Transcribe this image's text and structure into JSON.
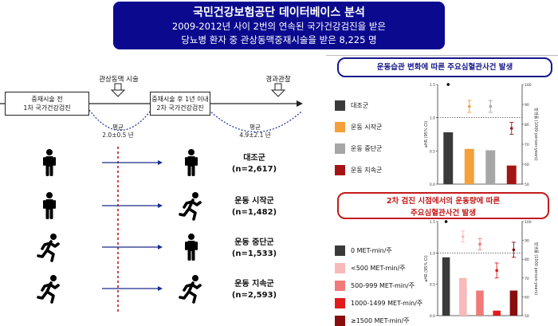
{
  "header": {
    "title": "국민건강보험공단 데이터베이스 분석",
    "line1": "2009-2012년 사이 2번의 연속된 국가건강검진을 받은",
    "line2": "당뇨병 환자 중 관상동맥중재시술을 받은 8,225 명"
  },
  "timeline": {
    "box1": [
      "중재시술 전",
      "1차 국가건강검진"
    ],
    "box2": [
      "중재시술 후 1년 이내",
      "2차 국가건강검진"
    ],
    "step1": "관상동맥 시술",
    "step2": "경과관찰",
    "avg_label": "평균",
    "avg1": "2.0±0.5 년",
    "avg2": "4.9±2.1 년"
  },
  "groups": [
    {
      "name": "대조군",
      "n": "(n=2,617)",
      "first": "stand",
      "second": "stand"
    },
    {
      "name": "운동 시작군",
      "n": "(n=1,482)",
      "first": "stand",
      "second": "run"
    },
    {
      "name": "운동 중단군",
      "n": "(n=1,533)",
      "first": "run",
      "second": "stand"
    },
    {
      "name": "운동 지속군",
      "n": "(n=2,593)",
      "first": "run",
      "second": "run"
    }
  ],
  "panel1": {
    "title": "운동습관 변화에 따른 주요심혈관사건 발생",
    "legend": [
      {
        "label": "대조군",
        "color": "#3a3a3a"
      },
      {
        "label": "운동 시작군",
        "color": "#f5a03a"
      },
      {
        "label": "운동 중단군",
        "color": "#a6a6a6"
      },
      {
        "label": "운동 지속군",
        "color": "#a31515"
      }
    ],
    "chart_data": {
      "type": "bar",
      "categories": [
        "대조군",
        "운동 시작군",
        "운동 중단군",
        "운동 지속군"
      ],
      "values": [
        0.78,
        0.53,
        0.51,
        0.28
      ],
      "points": [
        100,
        89,
        89,
        78
      ],
      "point_errors": [
        0,
        3,
        3,
        3
      ],
      "ylim": [
        0,
        1.5
      ],
      "yticks_left": [
        "0.0",
        "0.5",
        "1.0",
        "1.5"
      ],
      "y2lim": [
        50,
        100
      ],
      "yticks_right": [
        "50",
        "60",
        "70",
        "80",
        "90",
        "100"
      ],
      "ylabel": "aHR (95% CI)",
      "y2label": "발생률 (1000 person-years)",
      "reference_line": 1.0
    }
  },
  "panel2": {
    "title_line1": "2차 검진 시점에서의 운동량에 따른",
    "title_line2": "주요심혈관사건 발생",
    "legend": [
      {
        "label": "0 MET-min/주",
        "color": "#3a3a3a"
      },
      {
        "label": "<500 MET-min/주",
        "color": "#f7b9b9"
      },
      {
        "label": "500-999 MET-min/주",
        "color": "#f07a7a"
      },
      {
        "label": "1000-1499 MET-min/주",
        "color": "#e11a1a"
      },
      {
        "label": "≥1500 MET-min/주",
        "color": "#8a0d0d"
      }
    ],
    "chart_data": {
      "type": "bar",
      "categories": [
        "0 MET-min/주",
        "<500 MET-min/주",
        "500-999 MET-min/주",
        "1000-1499 MET-min/주",
        "≥1500 MET-min/주"
      ],
      "values": [
        0.93,
        0.6,
        0.4,
        0.08,
        0.4
      ],
      "points": [
        100,
        92,
        88,
        74,
        85
      ],
      "point_errors": [
        0,
        3,
        3,
        4,
        4
      ],
      "ylim": [
        0,
        1.5
      ],
      "yticks_left": [
        "0.0",
        "0.5",
        "1.0",
        "1.5"
      ],
      "y2lim": [
        50,
        100
      ],
      "yticks_right": [
        "50",
        "60",
        "70",
        "80",
        "90",
        "100"
      ],
      "ylabel": "aHR (95% CI)",
      "y2label": "발생률 (1000 person-years)",
      "reference_line": 1.0
    }
  }
}
